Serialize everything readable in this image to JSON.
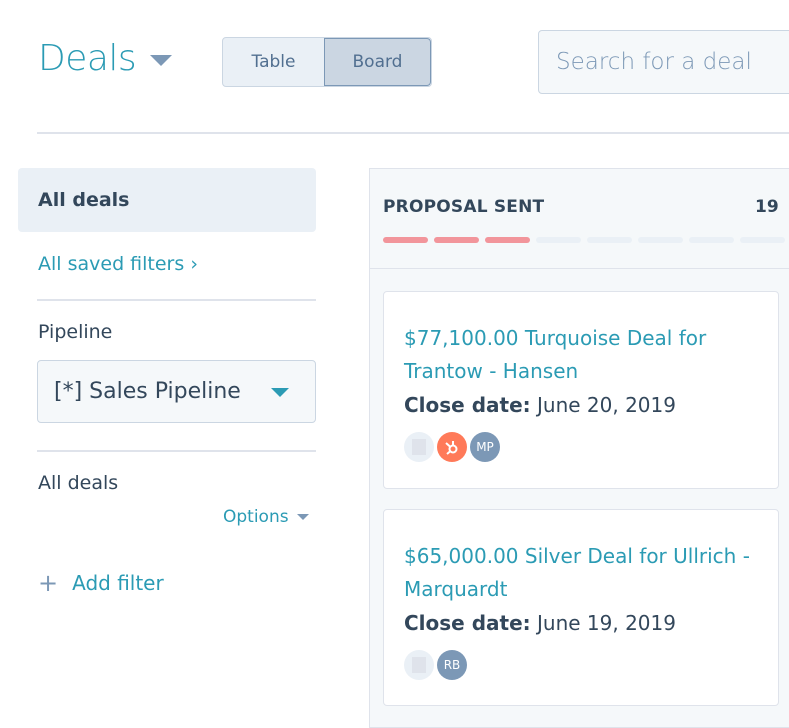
{
  "header": {
    "title": "Deals",
    "view_toggle": [
      "Table",
      "Board"
    ],
    "active_view": "Board",
    "search_placeholder": "Search for a deal"
  },
  "sidebar": {
    "all_deals": "All deals",
    "saved_filters": "All saved filters",
    "pipeline_label": "Pipeline",
    "pipeline_value": "[*] Sales Pipeline",
    "view_label": "All deals",
    "options": "Options",
    "add_filter": "Add filter"
  },
  "board": {
    "column": {
      "title": "PROPOSAL SENT",
      "count": "19",
      "progress_segments": 8,
      "progress_filled": 3,
      "accent": "#f2959b"
    },
    "cards": [
      {
        "name": "$77,100.00 Turquoise Deal for Trantow - Hansen",
        "close_label": "Close date:",
        "close_date": "June 20, 2019",
        "avatars": [
          "company",
          "hubspot",
          "MP"
        ]
      },
      {
        "name": "$65,000.00 Silver Deal for Ullrich - Marquardt",
        "close_label": "Close date:",
        "close_date": "June 19, 2019",
        "avatars": [
          "company",
          "RB"
        ]
      }
    ]
  },
  "colors": {
    "link": "#2b9bb4",
    "text": "#33475b",
    "accent_owner": "#ff7a59"
  }
}
